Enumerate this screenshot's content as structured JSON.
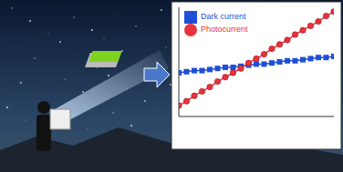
{
  "chart_data": {
    "type": "line",
    "tick_labels": false,
    "legend": "upper left",
    "grid": false,
    "xlim": [
      0,
      20
    ],
    "ylim": [
      0,
      10
    ],
    "x": [
      0,
      1,
      2,
      3,
      4,
      5,
      6,
      7,
      8,
      9,
      10,
      11,
      12,
      13,
      14,
      15,
      16,
      17,
      18,
      19,
      20
    ],
    "series": [
      {
        "name": "Dark current",
        "color": "#1f4fd6",
        "marker": "square",
        "values": [
          4.0,
          4.1,
          4.2,
          4.2,
          4.3,
          4.4,
          4.5,
          4.5,
          4.6,
          4.7,
          4.8,
          4.8,
          4.9,
          5.0,
          5.1,
          5.1,
          5.2,
          5.3,
          5.4,
          5.4,
          5.5
        ]
      },
      {
        "name": "Photocurrent",
        "color": "#e8323c",
        "marker": "circle",
        "values": [
          1.0,
          1.4,
          1.9,
          2.3,
          2.7,
          3.2,
          3.6,
          4.0,
          4.4,
          4.9,
          5.3,
          5.7,
          6.2,
          6.6,
          7.0,
          7.5,
          7.9,
          8.3,
          8.7,
          9.2,
          9.6
        ]
      }
    ]
  }
}
